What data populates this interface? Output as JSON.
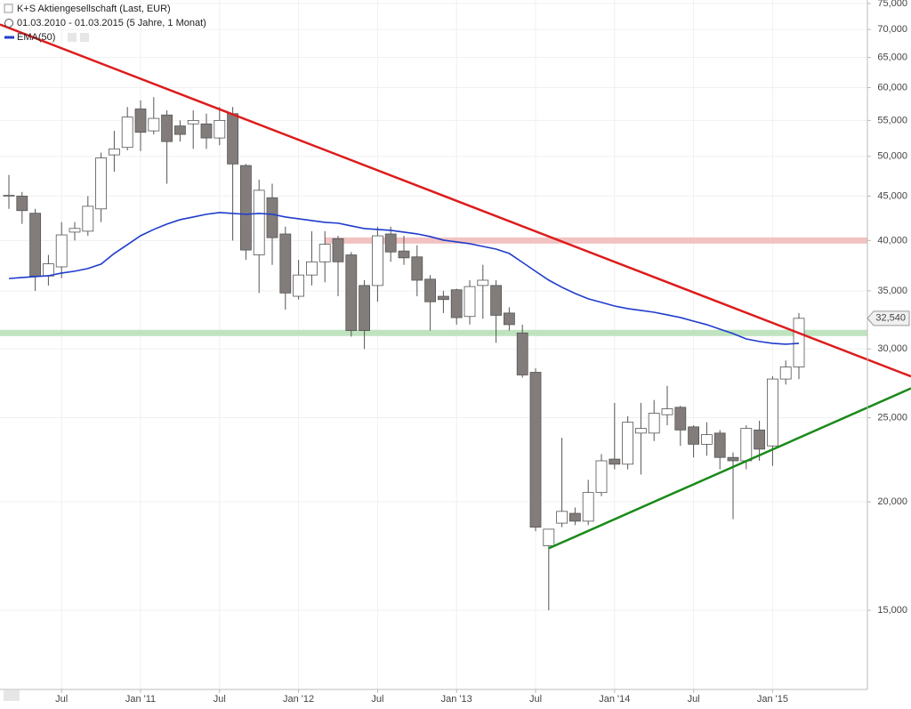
{
  "chart_data": {
    "type": "candlestick",
    "title": "K+S Aktiengesellschaft (Last, EUR)",
    "subtitle": "01.03.2010 - 01.03.2015 (5 Jahre, 1 Monat)",
    "categories": [
      null,
      null,
      null,
      null,
      "Jul",
      null,
      null,
      null,
      null,
      null,
      "Jan '11",
      null,
      null,
      null,
      null,
      null,
      "Jul",
      null,
      null,
      null,
      null,
      null,
      "Jan '12",
      null,
      null,
      null,
      null,
      null,
      "Jul",
      null,
      null,
      null,
      null,
      null,
      "Jan '13",
      null,
      null,
      null,
      null,
      null,
      "Jul",
      null,
      null,
      null,
      null,
      null,
      "Jan '14",
      null,
      null,
      null,
      null,
      null,
      "Jul",
      null,
      null,
      null,
      null,
      null,
      "Jan '15",
      null,
      null
    ],
    "open": [
      45000,
      45000,
      43000,
      36400,
      37300,
      40900,
      41000,
      43500,
      50200,
      51200,
      56700,
      53500,
      55800,
      54200,
      54500,
      54500,
      52500,
      56000,
      48800,
      38500,
      44800,
      40700,
      34500,
      36500,
      37800,
      40200,
      38500,
      35500,
      35500,
      40700,
      38900,
      38300,
      36100,
      34500,
      35100,
      32700,
      35500,
      35500,
      33000,
      31300,
      28200,
      17800,
      18900,
      19400,
      19000,
      20500,
      22400,
      22100,
      24000,
      24000,
      25200,
      25700,
      24400,
      23300,
      24000,
      22500,
      22300,
      24200,
      23200,
      27700,
      28600
    ],
    "high": [
      47600,
      45500,
      43500,
      38500,
      42000,
      42000,
      45000,
      50500,
      53500,
      57000,
      58000,
      58500,
      56500,
      55000,
      56500,
      56000,
      57000,
      57000,
      49000,
      47000,
      46500,
      41500,
      38000,
      41000,
      41000,
      40500,
      38800,
      36000,
      41500,
      41500,
      40500,
      39500,
      36500,
      35000,
      35200,
      36000,
      37500,
      36000,
      33500,
      32000,
      28500,
      18600,
      23700,
      19700,
      21200,
      22700,
      26000,
      25100,
      26000,
      26200,
      27200,
      25800,
      24500,
      24700,
      24200,
      22800,
      24500,
      24800,
      27900,
      29100,
      33000
    ],
    "low": [
      43500,
      41800,
      35000,
      35500,
      36200,
      40000,
      40500,
      42000,
      48000,
      50800,
      50700,
      53000,
      46500,
      52000,
      51000,
      51000,
      51500,
      40000,
      38000,
      34800,
      37500,
      33300,
      34200,
      35500,
      35800,
      34500,
      31000,
      30000,
      34000,
      37800,
      37500,
      34500,
      31500,
      33000,
      32000,
      32000,
      32500,
      30500,
      31500,
      27800,
      18500,
      15000,
      18700,
      18800,
      18800,
      20300,
      21800,
      21800,
      21500,
      23500,
      24500,
      23200,
      22500,
      22600,
      21800,
      19100,
      21800,
      22300,
      22000,
      27300,
      27700
    ],
    "close": [
      45100,
      43300,
      36400,
      37600,
      40600,
      41300,
      43800,
      49800,
      51000,
      55500,
      53300,
      55300,
      52000,
      53000,
      55000,
      52500,
      55000,
      49000,
      39000,
      45700,
      40300,
      34800,
      36500,
      37800,
      39600,
      37800,
      31500,
      31500,
      40500,
      38800,
      38200,
      36000,
      34000,
      34200,
      32600,
      35400,
      36000,
      32800,
      32000,
      28000,
      18700,
      18600,
      19500,
      19000,
      20500,
      22300,
      22100,
      24700,
      24300,
      25300,
      25600,
      24200,
      23300,
      23900,
      22500,
      22300,
      24300,
      23000,
      27700,
      28600,
      32540
    ],
    "up_color": "#ffffff",
    "down_color": "#827d7b",
    "last_value_label": "32,540",
    "series": [
      {
        "name": "EMA(50)",
        "color": "#1f3ccc",
        "values": [
          36160,
          36260,
          36350,
          36430,
          36690,
          36870,
          37130,
          37570,
          38650,
          39560,
          40510,
          41190,
          41780,
          42270,
          42570,
          42880,
          43080,
          42980,
          42880,
          42980,
          42880,
          42570,
          42370,
          42170,
          41970,
          41880,
          41580,
          41290,
          41190,
          41090,
          40900,
          40710,
          40420,
          40040,
          39850,
          39660,
          39380,
          39100,
          38650,
          37750,
          36860,
          36010,
          35330,
          34760,
          34270,
          33950,
          33620,
          33390,
          33230,
          33070,
          32840,
          32610,
          32300,
          32000,
          31620,
          31250,
          30810,
          30600,
          30450,
          30380,
          30450
        ]
      }
    ],
    "trendlines": [
      {
        "color": "#dd1c1c",
        "x": [
          0,
          60
        ],
        "values": [
          70300,
          31290
        ],
        "extend": "both"
      },
      {
        "color": "#1a8a1a",
        "x": [
          41,
          60
        ],
        "values": [
          17680,
          23700
        ],
        "extend": "right"
      }
    ],
    "levels": [
      {
        "value": 40000,
        "from": 24,
        "color": "#f2c2c2"
      },
      {
        "value": 31300,
        "from": 0,
        "color": "#bfe3bf"
      }
    ],
    "ylim": [
      12160,
      75700
    ],
    "log_scale": true,
    "grid": true,
    "yticks": [
      {
        "value": 15000,
        "label": "15,000"
      },
      {
        "value": 20000,
        "label": "20,000"
      },
      {
        "value": 25000,
        "label": "25,000"
      },
      {
        "value": 30000,
        "label": "30,000"
      },
      {
        "value": 35000,
        "label": "35,000"
      },
      {
        "value": 40000,
        "label": "40,000"
      },
      {
        "value": 45000,
        "label": "45,000"
      },
      {
        "value": 50000,
        "label": "50,000"
      },
      {
        "value": 55000,
        "label": "55,000"
      },
      {
        "value": 60000,
        "label": "60,000"
      },
      {
        "value": 65000,
        "label": "65,000"
      },
      {
        "value": 70000,
        "label": "70,000"
      },
      {
        "value": 75000,
        "label": "75,000"
      }
    ]
  }
}
